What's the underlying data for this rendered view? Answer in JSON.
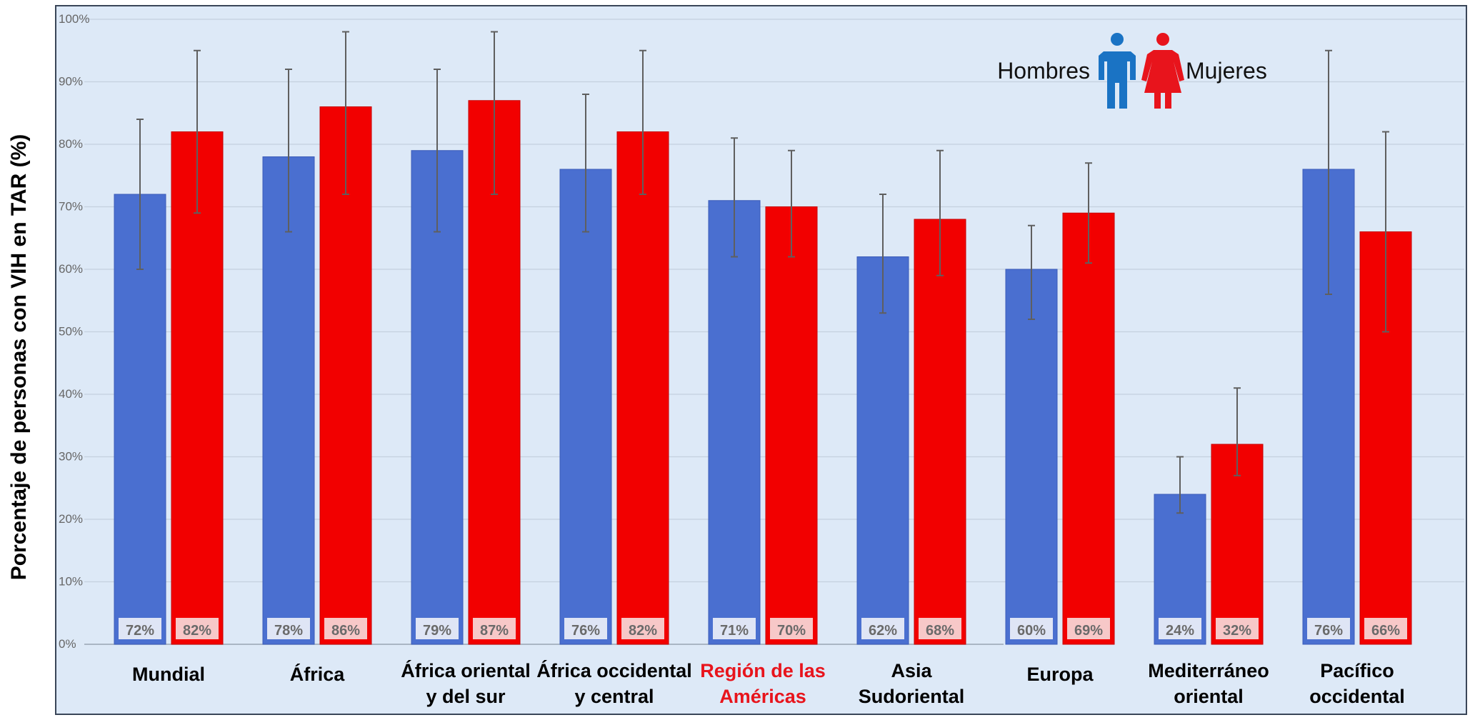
{
  "colors": {
    "men": "#4a6fd0",
    "women": "#f20000",
    "men_icon": "#1a73c4",
    "women_icon": "#e8141c",
    "plot_bg": "#dde9f7",
    "grid": "#c4d0de",
    "highlight_label": "#e8141c"
  },
  "chart_data": {
    "type": "bar",
    "ylabel": "Porcentaje de personas con VIH en TAR (%)",
    "ylim": [
      0,
      100
    ],
    "yticks": [
      "0%",
      "10%",
      "20%",
      "30%",
      "40%",
      "50%",
      "60%",
      "70%",
      "80%",
      "90%",
      "100%"
    ],
    "categories": [
      {
        "line1": "Mundial",
        "line2": "",
        "highlight": false
      },
      {
        "line1": "África",
        "line2": "",
        "highlight": false
      },
      {
        "line1": "África oriental",
        "line2": "y del sur",
        "highlight": false
      },
      {
        "line1": "África occidental",
        "line2": "y central",
        "highlight": false
      },
      {
        "line1": "Región de las",
        "line2": "Américas",
        "highlight": true
      },
      {
        "line1": "Asia",
        "line2": "Sudoriental",
        "highlight": false
      },
      {
        "line1": "Europa",
        "line2": "",
        "highlight": false
      },
      {
        "line1": "Mediterráneo",
        "line2": "oriental",
        "highlight": false
      },
      {
        "line1": "Pacífico",
        "line2": "occidental",
        "highlight": false
      }
    ],
    "series": [
      {
        "name": "Hombres",
        "values": [
          72,
          78,
          79,
          76,
          71,
          62,
          60,
          24,
          76
        ],
        "labels": [
          "72%",
          "78%",
          "79%",
          "76%",
          "71%",
          "62%",
          "60%",
          "24%",
          "76%"
        ],
        "err_low": [
          60,
          66,
          66,
          66,
          62,
          53,
          52,
          21,
          56
        ],
        "err_high": [
          84,
          92,
          92,
          88,
          81,
          72,
          67,
          30,
          95
        ]
      },
      {
        "name": "Mujeres",
        "values": [
          82,
          86,
          87,
          82,
          70,
          68,
          69,
          32,
          66
        ],
        "labels": [
          "82%",
          "86%",
          "87%",
          "82%",
          "70%",
          "68%",
          "69%",
          "32%",
          "66%"
        ],
        "err_low": [
          69,
          72,
          72,
          72,
          62,
          59,
          61,
          27,
          50
        ],
        "err_high": [
          95,
          98,
          98,
          95,
          79,
          79,
          77,
          41,
          82
        ]
      }
    ],
    "legend": {
      "men_label": "Hombres",
      "women_label": "Mujeres",
      "men_icon": "man-icon",
      "women_icon": "woman-icon",
      "placement": "top-right"
    },
    "grid": true
  }
}
